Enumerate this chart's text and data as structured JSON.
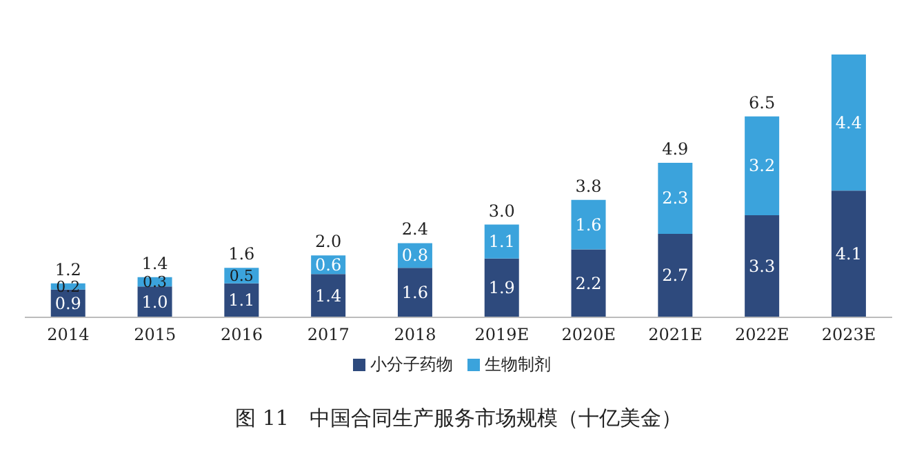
{
  "chart_data": {
    "type": "bar",
    "title": "图 11　中国合同生产服务市场规模（十亿美金）",
    "stacked": true,
    "legend": "bottom",
    "categories": [
      "2014",
      "2015",
      "2016",
      "2017",
      "2018",
      "2019E",
      "2020E",
      "2021E",
      "2022E",
      "2023E"
    ],
    "series": [
      {
        "name": "小分子药物",
        "color": "#2e4a7d",
        "values": [
          0.9,
          1.0,
          1.1,
          1.4,
          1.6,
          1.9,
          2.2,
          2.7,
          3.3,
          4.1
        ],
        "value_labels": [
          "0.9",
          "1.0",
          "1.1",
          "1.4",
          "1.6",
          "1.9",
          "2.2",
          "2.7",
          "3.3",
          "4.1"
        ]
      },
      {
        "name": "生物制剂",
        "color": "#3ba3dc",
        "values": [
          0.2,
          0.3,
          0.5,
          0.6,
          0.8,
          1.1,
          1.6,
          2.3,
          3.2,
          4.4
        ],
        "value_labels": [
          "0.2",
          "0.3",
          "0.5",
          "0.6",
          "0.8",
          "1.1",
          "1.6",
          "2.3",
          "3.2",
          "4.4"
        ]
      }
    ],
    "totals": [
      "1.2",
      "1.4",
      "1.6",
      "2.0",
      "2.4",
      "3.0",
      "3.8",
      "4.9",
      "6.5",
      null
    ]
  }
}
